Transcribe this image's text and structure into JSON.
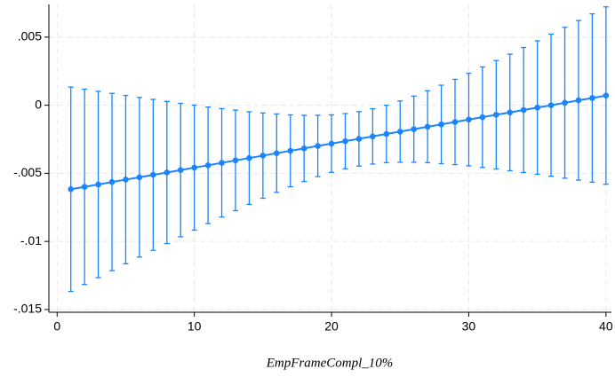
{
  "chart_data": {
    "type": "errorbar-line",
    "x_label": "EmpFrameCompl_10%",
    "x": [
      1,
      2,
      3,
      4,
      5,
      6,
      7,
      8,
      9,
      10,
      11,
      12,
      13,
      14,
      15,
      16,
      17,
      18,
      19,
      20,
      21,
      22,
      23,
      24,
      25,
      26,
      27,
      28,
      29,
      30,
      31,
      32,
      33,
      34,
      35,
      36,
      37,
      38,
      39,
      40
    ],
    "series": [
      {
        "color": "#1a85ff",
        "values": [
          -0.00617,
          -0.00599,
          -0.00582,
          -0.00564,
          -0.00546,
          -0.00529,
          -0.00511,
          -0.00494,
          -0.00476,
          -0.00458,
          -0.00441,
          -0.00423,
          -0.00405,
          -0.00388,
          -0.0037,
          -0.00352,
          -0.00335,
          -0.00317,
          -0.00299,
          -0.00282,
          -0.00264,
          -0.00247,
          -0.00229,
          -0.00211,
          -0.00194,
          -0.00176,
          -0.00158,
          -0.00141,
          -0.00123,
          -0.00105,
          -0.00088,
          -0.0007,
          -0.00053,
          -0.00035,
          -0.00017,
          0.0,
          0.00018,
          0.00036,
          0.00053,
          0.00071
        ],
        "errors": [
          0.0075,
          0.00717,
          0.00684,
          0.00651,
          0.00618,
          0.00586,
          0.00554,
          0.00522,
          0.0049,
          0.00459,
          0.00428,
          0.00398,
          0.00369,
          0.0034,
          0.00313,
          0.00288,
          0.00264,
          0.00243,
          0.00225,
          0.00211,
          0.00203,
          0.002,
          0.00203,
          0.00211,
          0.00225,
          0.00243,
          0.00264,
          0.00288,
          0.00313,
          0.0034,
          0.00369,
          0.00398,
          0.00428,
          0.00459,
          0.0049,
          0.00522,
          0.00554,
          0.00586,
          0.00618,
          0.00651
        ]
      }
    ],
    "xlim": [
      -0.6,
      40.4
    ],
    "xticks": [
      0,
      10,
      20,
      30,
      40
    ],
    "ylim": [
      -0.0152,
      0.0074
    ],
    "yticks": [
      {
        "value": -0.015,
        "label": "-.015"
      },
      {
        "value": -0.01,
        "label": "-.01"
      },
      {
        "value": -0.005,
        "label": "-.005"
      },
      0,
      {
        "value": 0.005,
        "label": ".005"
      }
    ],
    "grid": true
  }
}
